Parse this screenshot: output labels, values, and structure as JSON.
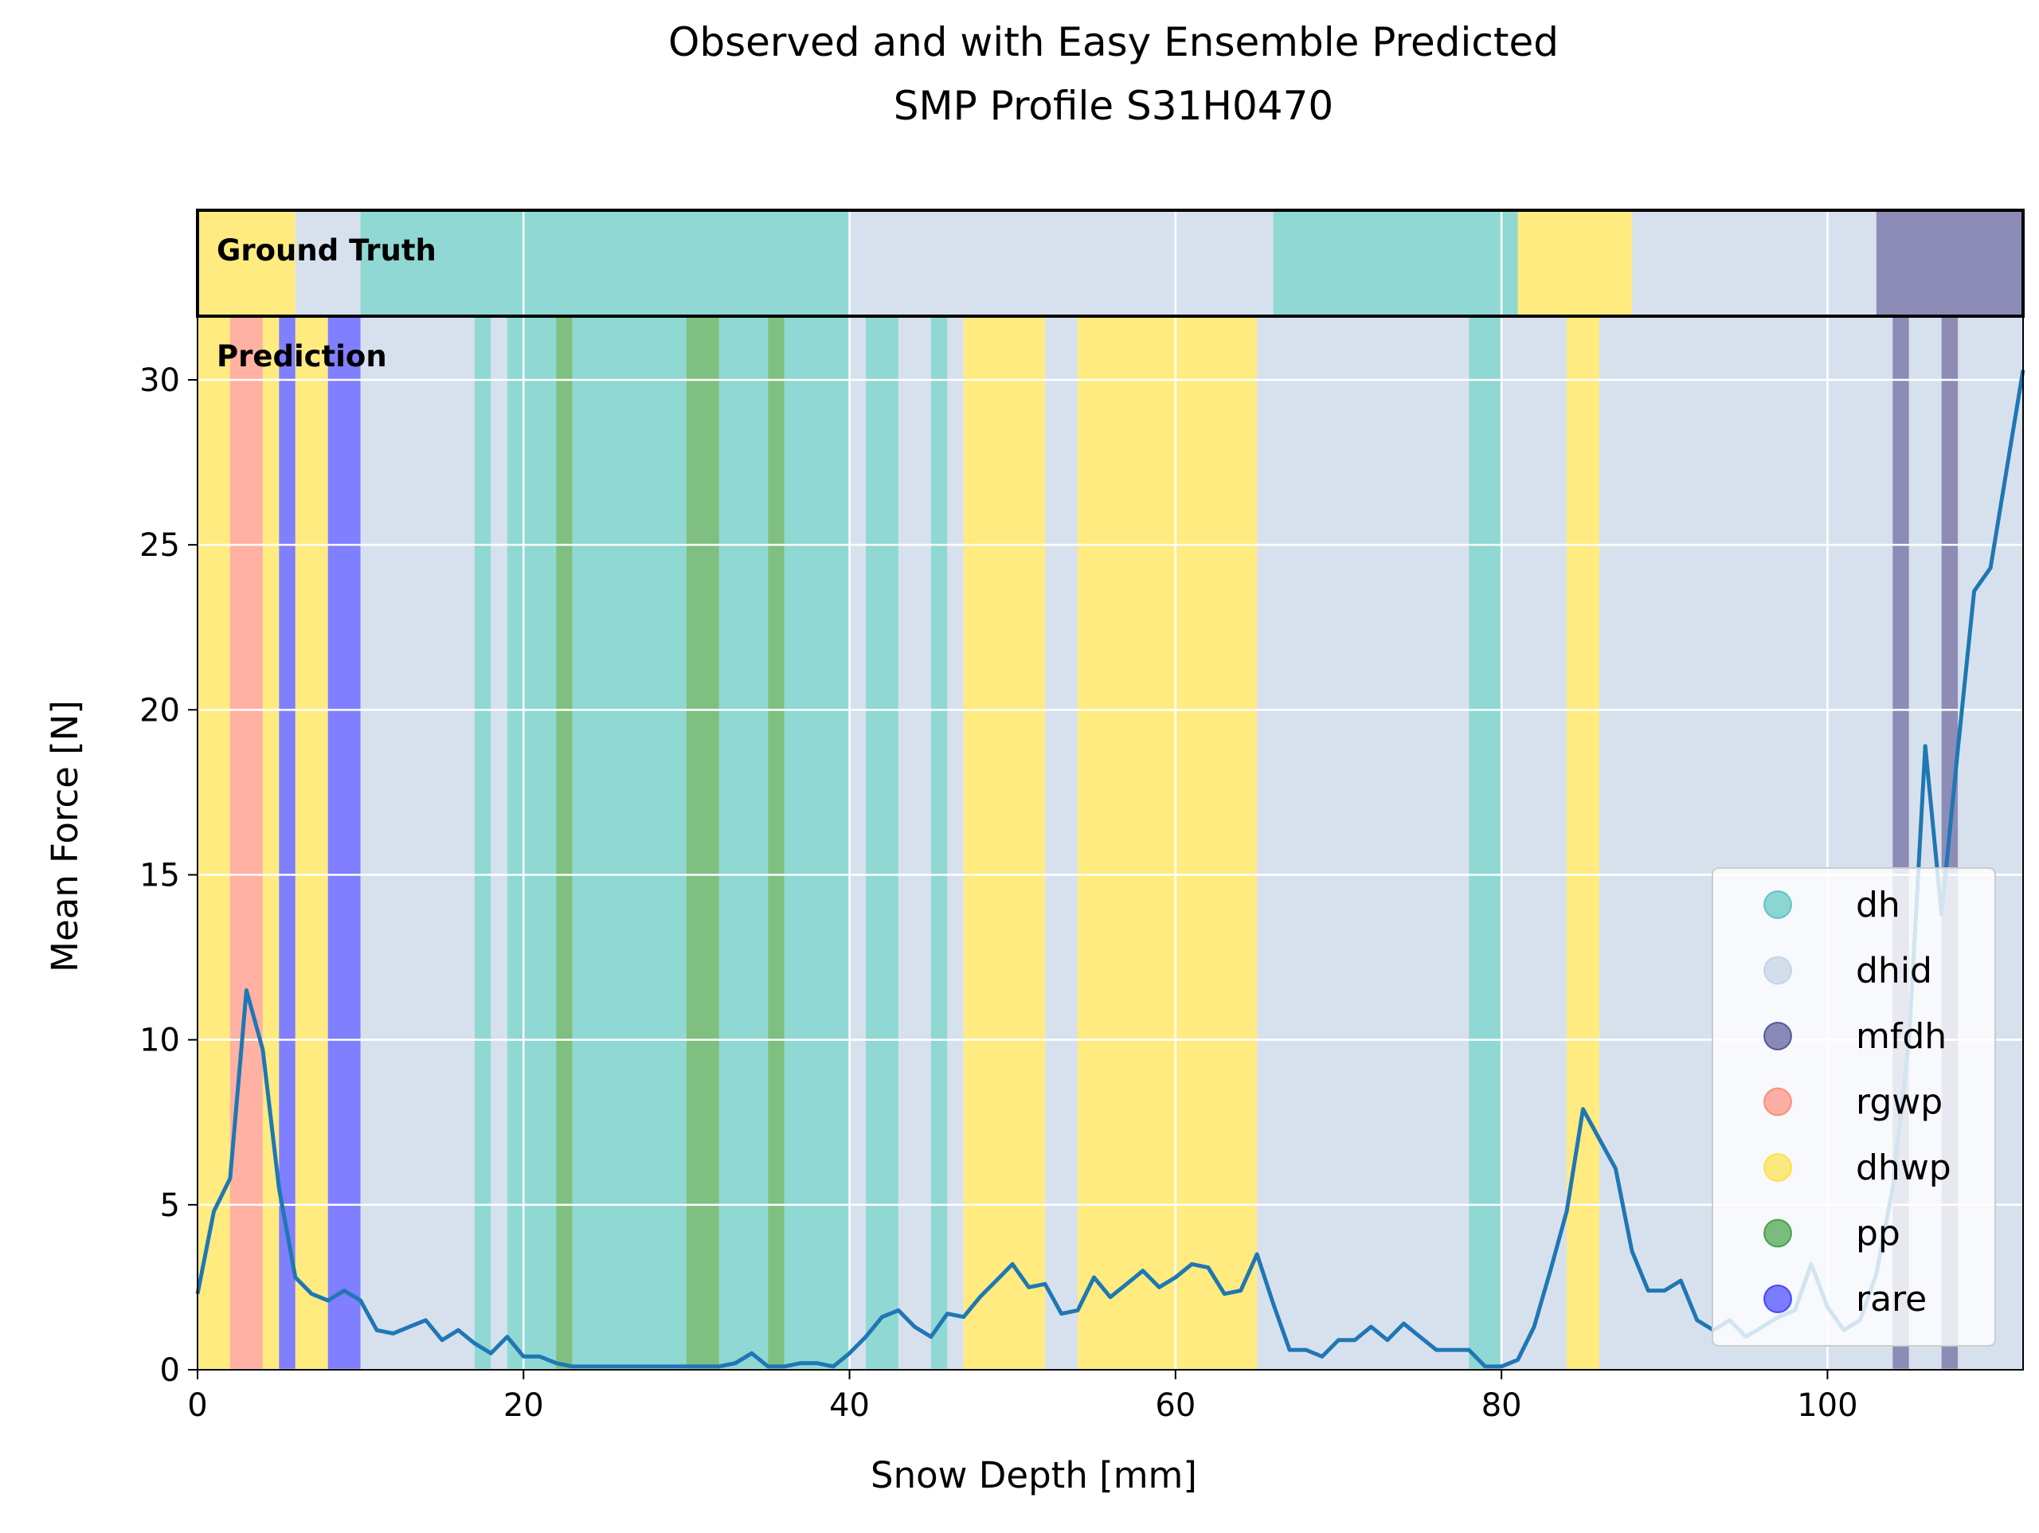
{
  "chart_data": {
    "type": "line",
    "title": "Observed and with Easy Ensemble Predicted",
    "subtitle": "SMP Profile S31H0470",
    "xlabel": "Snow Depth [mm]",
    "ylabel": "Mean Force [N]",
    "xlim": [
      0,
      112
    ],
    "ylim": [
      0,
      32
    ],
    "xticks": [
      0,
      20,
      40,
      60,
      80,
      100
    ],
    "yticks": [
      0,
      5,
      10,
      15,
      20,
      25,
      30
    ],
    "grid": true,
    "line_color": "#1f77b4",
    "legend_position": "lower-right",
    "band_labels": {
      "ground_truth": "Ground Truth",
      "prediction": "Prediction"
    },
    "classes": [
      {
        "name": "dh",
        "color": "#20b2aa",
        "alpha": 0.5
      },
      {
        "name": "dhid",
        "color": "#b0c4de",
        "alpha": 0.5
      },
      {
        "name": "mfdh",
        "color": "#191970",
        "alpha": 0.5
      },
      {
        "name": "rgwp",
        "color": "#ff6347",
        "alpha": 0.5
      },
      {
        "name": "dhwp",
        "color": "#ffd700",
        "alpha": 0.5
      },
      {
        "name": "pp",
        "color": "#008000",
        "alpha": 0.5
      },
      {
        "name": "rare",
        "color": "#0000ff",
        "alpha": 0.5
      }
    ],
    "ground_truth_segments": [
      {
        "start": 0,
        "end": 6,
        "class": "dhwp"
      },
      {
        "start": 6,
        "end": 10,
        "class": "dhid"
      },
      {
        "start": 10,
        "end": 40,
        "class": "dh"
      },
      {
        "start": 40,
        "end": 66,
        "class": "dhid"
      },
      {
        "start": 66,
        "end": 81,
        "class": "dh"
      },
      {
        "start": 81,
        "end": 88,
        "class": "dhwp"
      },
      {
        "start": 88,
        "end": 103,
        "class": "dhid"
      },
      {
        "start": 103,
        "end": 112,
        "class": "mfdh"
      }
    ],
    "prediction_segments": [
      {
        "start": 0,
        "end": 2,
        "class": "dhwp"
      },
      {
        "start": 2,
        "end": 4,
        "class": "rgwp"
      },
      {
        "start": 4,
        "end": 5,
        "class": "dhwp"
      },
      {
        "start": 5,
        "end": 6,
        "class": "rare"
      },
      {
        "start": 6,
        "end": 8,
        "class": "dhwp"
      },
      {
        "start": 8,
        "end": 10,
        "class": "rare"
      },
      {
        "start": 10,
        "end": 17,
        "class": "dhid"
      },
      {
        "start": 17,
        "end": 18,
        "class": "dh"
      },
      {
        "start": 18,
        "end": 19,
        "class": "dhid"
      },
      {
        "start": 19,
        "end": 22,
        "class": "dh"
      },
      {
        "start": 22,
        "end": 23,
        "class": "pp"
      },
      {
        "start": 23,
        "end": 30,
        "class": "dh"
      },
      {
        "start": 30,
        "end": 32,
        "class": "pp"
      },
      {
        "start": 32,
        "end": 35,
        "class": "dh"
      },
      {
        "start": 35,
        "end": 36,
        "class": "pp"
      },
      {
        "start": 36,
        "end": 40,
        "class": "dh"
      },
      {
        "start": 40,
        "end": 41,
        "class": "dhid"
      },
      {
        "start": 41,
        "end": 43,
        "class": "dh"
      },
      {
        "start": 43,
        "end": 45,
        "class": "dhid"
      },
      {
        "start": 45,
        "end": 46,
        "class": "dh"
      },
      {
        "start": 46,
        "end": 47,
        "class": "dhid"
      },
      {
        "start": 47,
        "end": 52,
        "class": "dhwp"
      },
      {
        "start": 52,
        "end": 54,
        "class": "dhid"
      },
      {
        "start": 54,
        "end": 65,
        "class": "dhwp"
      },
      {
        "start": 65,
        "end": 78,
        "class": "dhid"
      },
      {
        "start": 78,
        "end": 80,
        "class": "dh"
      },
      {
        "start": 80,
        "end": 81,
        "class": "dhid"
      },
      {
        "start": 81,
        "end": 84,
        "class": "dhid"
      },
      {
        "start": 84,
        "end": 86,
        "class": "dhwp"
      },
      {
        "start": 86,
        "end": 104,
        "class": "dhid"
      },
      {
        "start": 104,
        "end": 105,
        "class": "mfdh"
      },
      {
        "start": 105,
        "end": 107,
        "class": "dhid"
      },
      {
        "start": 107,
        "end": 108,
        "class": "mfdh"
      },
      {
        "start": 108,
        "end": 112,
        "class": "dhid"
      }
    ],
    "series": [
      {
        "x": [
          0,
          1,
          2,
          3,
          4,
          5,
          6,
          7,
          8,
          9,
          10,
          11,
          12,
          13,
          14,
          15,
          16,
          17,
          18,
          19,
          20,
          21,
          22,
          23,
          24,
          25,
          26,
          27,
          28,
          29,
          30,
          31,
          32,
          33,
          34,
          35,
          36,
          37,
          38,
          39,
          40,
          41,
          42,
          43,
          44,
          45,
          46,
          47,
          48,
          49,
          50,
          51,
          52,
          53,
          54,
          55,
          56,
          57,
          58,
          59,
          60,
          61,
          62,
          63,
          64,
          65,
          66,
          67,
          68,
          69,
          70,
          71,
          72,
          73,
          74,
          75,
          76,
          77,
          78,
          79,
          80,
          81,
          82,
          83,
          84,
          85,
          86,
          87,
          88,
          89,
          90,
          91,
          92,
          93,
          94,
          95,
          96,
          97,
          98,
          99,
          100,
          101,
          102,
          103,
          104,
          105,
          106,
          107,
          108,
          109,
          110,
          111,
          112
        ],
        "y": [
          2.3,
          4.8,
          5.8,
          11.5,
          9.7,
          5.5,
          2.8,
          2.3,
          2.1,
          2.4,
          2.1,
          1.2,
          1.1,
          1.3,
          1.5,
          0.9,
          1.2,
          0.8,
          0.5,
          1.0,
          0.4,
          0.4,
          0.2,
          0.1,
          0.1,
          0.1,
          0.1,
          0.1,
          0.1,
          0.1,
          0.1,
          0.1,
          0.1,
          0.2,
          0.5,
          0.1,
          0.1,
          0.2,
          0.2,
          0.1,
          0.5,
          1.0,
          1.6,
          1.8,
          1.3,
          1.0,
          1.7,
          1.6,
          2.2,
          2.7,
          3.2,
          2.5,
          2.6,
          1.7,
          1.8,
          2.8,
          2.2,
          2.6,
          3.0,
          2.5,
          2.8,
          3.2,
          3.1,
          2.3,
          2.4,
          3.5,
          2.0,
          0.6,
          0.6,
          0.4,
          0.9,
          0.9,
          1.3,
          0.9,
          1.4,
          1.0,
          0.6,
          0.6,
          0.6,
          0.1,
          0.1,
          0.3,
          1.3,
          3.0,
          4.8,
          7.9,
          7.0,
          6.1,
          3.6,
          2.4,
          2.4,
          2.7,
          1.5,
          1.2,
          1.5,
          1.0,
          1.3,
          1.6,
          1.8,
          3.2,
          1.9,
          1.2,
          1.5,
          2.9,
          5.5,
          10.0,
          18.9,
          13.8,
          18.8,
          23.6,
          24.3,
          27.3,
          30.3
        ]
      }
    ]
  }
}
